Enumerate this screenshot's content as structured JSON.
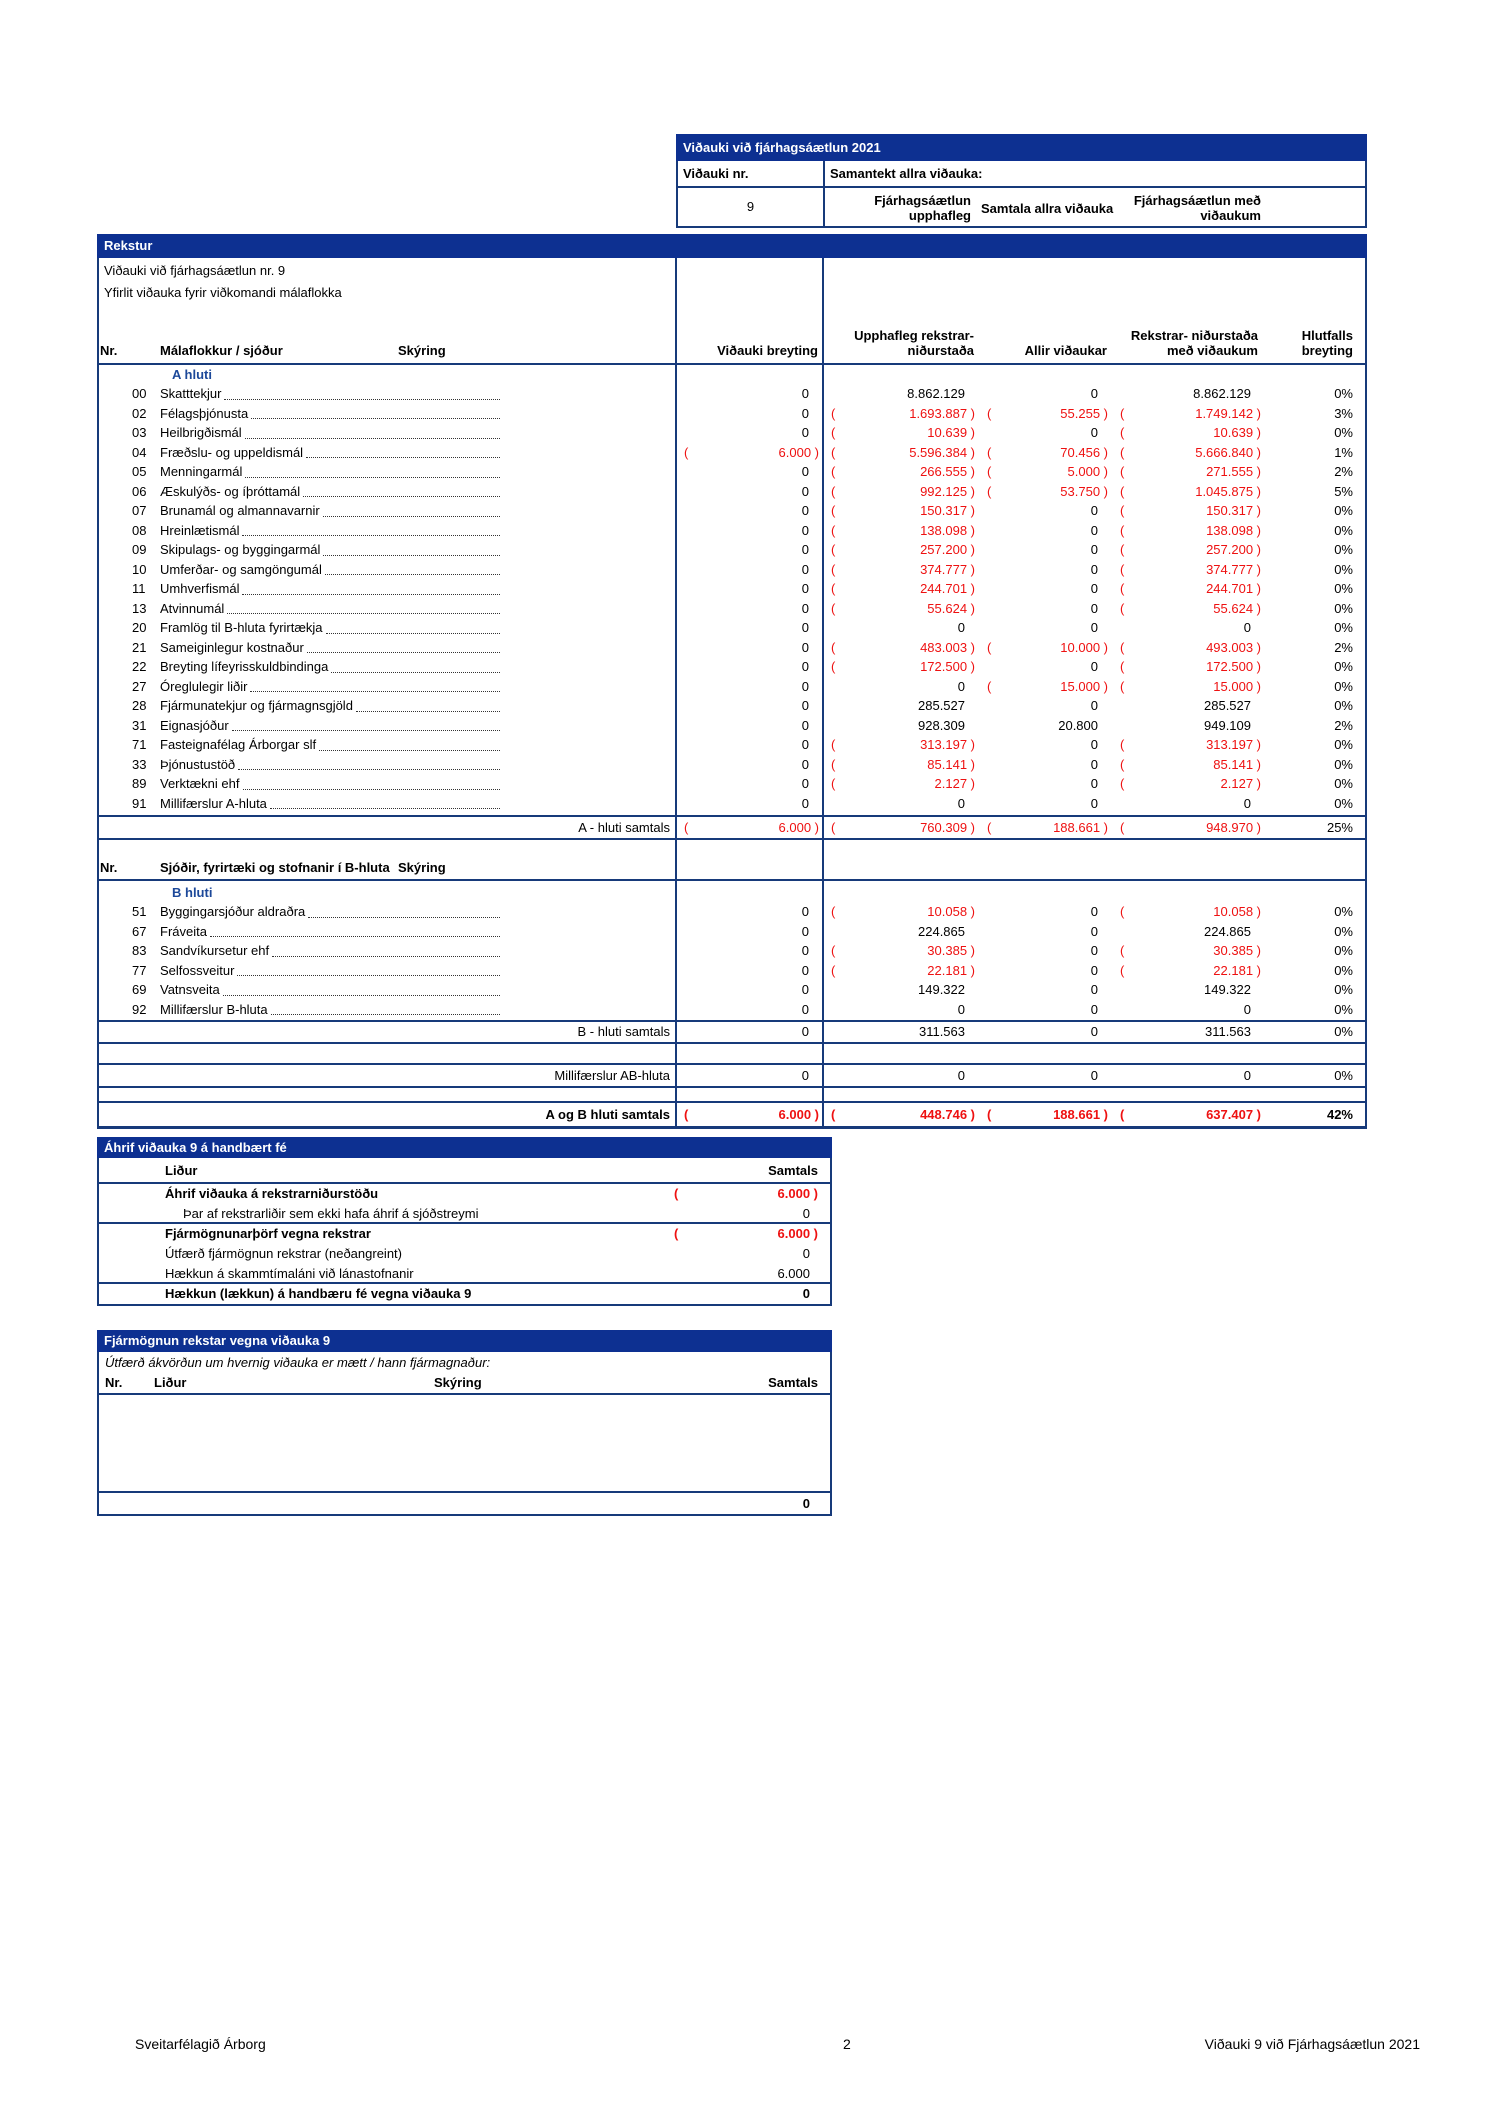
{
  "colors": {
    "navy_bar": "#0d3091",
    "table_border": "#173a7a",
    "negative_red": "#ee1111",
    "section_label_blue": "#1c4899"
  },
  "header_box": {
    "title": "Viðauki við fjárhagsáætlun 2021",
    "vidauki_nr_label": "Viðauki nr.",
    "vidauki_nr_value": "9",
    "samantekt_label": "Samantekt allra viðauka:",
    "col_upphafleg": "Fjárhagsáætlun upphafleg",
    "col_samtala": "Samtala allra viðauka",
    "col_med": "Fjárhagsáætlun með viðaukum"
  },
  "main_table": {
    "bar": "Rekstur",
    "info_line1": "Viðauki við fjárhagsáætlun nr. 9",
    "info_line2": "Yfirlit viðauka fyrir viðkomandi málaflokka",
    "col_headers": {
      "nr": "Nr.",
      "flokkur": "Málaflokkur / sjóður",
      "skyring": "Skýring",
      "vidauki_breyting": "Viðauki breyting",
      "upphafleg": "Upphafleg rekstrar- niðurstaða",
      "allir": "Allir viðaukar",
      "med_vidaukum": "Rekstrar- niðurstaða með viðaukum",
      "hlutfalls": "Hlutfalls breyting"
    },
    "a_label": "A hluti",
    "a_rows": [
      {
        "nr": "00",
        "label": "Skatttekjur",
        "vb": "0",
        "upph": "8.862.129",
        "allir": "0",
        "med": "8.862.129",
        "pct": "0%"
      },
      {
        "nr": "02",
        "label": "Félagsþjónusta",
        "vb": "0",
        "upph": "( 1.693.887 )",
        "allir": "( 55.255 )",
        "med": "( 1.749.142 )",
        "pct": "3%"
      },
      {
        "nr": "03",
        "label": "Heilbrigðismál",
        "vb": "0",
        "upph": "( 10.639 )",
        "allir": "0",
        "med": "( 10.639 )",
        "pct": "0%"
      },
      {
        "nr": "04",
        "label": "Fræðslu- og uppeldismál",
        "vb": "( 6.000 )",
        "upph": "( 5.596.384 )",
        "allir": "( 70.456 )",
        "med": "( 5.666.840 )",
        "pct": "1%"
      },
      {
        "nr": "05",
        "label": "Menningarmál",
        "vb": "0",
        "upph": "( 266.555 )",
        "allir": "( 5.000 )",
        "med": "( 271.555 )",
        "pct": "2%"
      },
      {
        "nr": "06",
        "label": "Æskulýðs- og íþróttamál",
        "vb": "0",
        "upph": "( 992.125 )",
        "allir": "( 53.750 )",
        "med": "( 1.045.875 )",
        "pct": "5%"
      },
      {
        "nr": "07",
        "label": "Brunamál og almannavarnir",
        "vb": "0",
        "upph": "( 150.317 )",
        "allir": "0",
        "med": "( 150.317 )",
        "pct": "0%"
      },
      {
        "nr": "08",
        "label": "Hreinlætismál",
        "vb": "0",
        "upph": "( 138.098 )",
        "allir": "0",
        "med": "( 138.098 )",
        "pct": "0%"
      },
      {
        "nr": "09",
        "label": "Skipulags- og byggingarmál",
        "vb": "0",
        "upph": "( 257.200 )",
        "allir": "0",
        "med": "( 257.200 )",
        "pct": "0%"
      },
      {
        "nr": "10",
        "label": "Umferðar- og samgöngumál",
        "vb": "0",
        "upph": "( 374.777 )",
        "allir": "0",
        "med": "( 374.777 )",
        "pct": "0%"
      },
      {
        "nr": "11",
        "label": "Umhverfismál",
        "vb": "0",
        "upph": "( 244.701 )",
        "allir": "0",
        "med": "( 244.701 )",
        "pct": "0%"
      },
      {
        "nr": "13",
        "label": "Atvinnumál",
        "vb": "0",
        "upph": "( 55.624 )",
        "allir": "0",
        "med": "( 55.624 )",
        "pct": "0%"
      },
      {
        "nr": "20",
        "label": "Framlög til B-hluta fyrirtækja",
        "vb": "0",
        "upph": "0",
        "allir": "0",
        "med": "0",
        "pct": "0%"
      },
      {
        "nr": "21",
        "label": "Sameiginlegur kostnaður",
        "vb": "0",
        "upph": "( 483.003 )",
        "allir": "( 10.000 )",
        "med": "( 493.003 )",
        "pct": "2%"
      },
      {
        "nr": "22",
        "label": "Breyting lífeyrisskuldbindinga",
        "vb": "0",
        "upph": "( 172.500 )",
        "allir": "0",
        "med": "( 172.500 )",
        "pct": "0%"
      },
      {
        "nr": "27",
        "label": "Óreglulegir liðir",
        "vb": "0",
        "upph": "0",
        "allir": "( 15.000 )",
        "med": "( 15.000 )",
        "pct": "0%"
      },
      {
        "nr": "28",
        "label": "Fjármunatekjur og fjármagnsgjöld",
        "vb": "0",
        "upph": "285.527",
        "allir": "0",
        "med": "285.527",
        "pct": "0%"
      },
      {
        "nr": "31",
        "label": "Eignasjóður",
        "vb": "0",
        "upph": "928.309",
        "allir": "20.800",
        "med": "949.109",
        "pct": "2%"
      },
      {
        "nr": "71",
        "label": "Fasteignafélag Árborgar slf",
        "vb": "0",
        "upph": "( 313.197 )",
        "allir": "0",
        "med": "( 313.197 )",
        "pct": "0%"
      },
      {
        "nr": "33",
        "label": "Þjónustustöð",
        "vb": "0",
        "upph": "( 85.141 )",
        "allir": "0",
        "med": "( 85.141 )",
        "pct": "0%"
      },
      {
        "nr": "89",
        "label": "Verktækni ehf",
        "vb": "0",
        "upph": "( 2.127 )",
        "allir": "0",
        "med": "( 2.127 )",
        "pct": "0%"
      },
      {
        "nr": "91",
        "label": "Millifærslur A-hluta",
        "vb": "0",
        "upph": "0",
        "allir": "0",
        "med": "0",
        "pct": "0%"
      }
    ],
    "a_total": {
      "label": "A - hluti samtals",
      "vb": "( 6.000 )",
      "upph": "( 760.309 )",
      "allir": "( 188.661 )",
      "med": "( 948.970 )",
      "pct": "25%"
    },
    "b_headers": {
      "nr": "Nr.",
      "flokkur": "Sjóðir, fyrirtæki og stofnanir í B-hluta",
      "skyring": "Skýring"
    },
    "b_label": "B hluti",
    "b_rows": [
      {
        "nr": "51",
        "label": "Byggingarsjóður aldraðra",
        "vb": "0",
        "upph": "( 10.058 )",
        "allir": "0",
        "med": "( 10.058 )",
        "pct": "0%"
      },
      {
        "nr": "67",
        "label": "Fráveita",
        "vb": "0",
        "upph": "224.865",
        "allir": "0",
        "med": "224.865",
        "pct": "0%"
      },
      {
        "nr": "83",
        "label": "Sandvíkursetur ehf",
        "vb": "0",
        "upph": "( 30.385 )",
        "allir": "0",
        "med": "( 30.385 )",
        "pct": "0%"
      },
      {
        "nr": "77",
        "label": "Selfossveitur",
        "vb": "0",
        "upph": "( 22.181 )",
        "allir": "0",
        "med": "( 22.181 )",
        "pct": "0%"
      },
      {
        "nr": "69",
        "label": "Vatnsveita",
        "vb": "0",
        "upph": "149.322",
        "allir": "0",
        "med": "149.322",
        "pct": "0%"
      },
      {
        "nr": "92",
        "label": "Millifærslur B-hluta",
        "vb": "0",
        "upph": "0",
        "allir": "0",
        "med": "0",
        "pct": "0%"
      }
    ],
    "b_total": {
      "label": "B - hluti samtals",
      "vb": "0",
      "upph": "311.563",
      "allir": "0",
      "med": "311.563",
      "pct": "0%"
    },
    "ab_transfer": {
      "label": "Millifærslur AB-hluta",
      "vb": "0",
      "upph": "0",
      "allir": "0",
      "med": "0",
      "pct": "0%"
    },
    "ab_total": {
      "label": "A og B hluti samtals",
      "vb": "( 6.000 )",
      "upph": "( 448.746 )",
      "allir": "( 188.661 )",
      "med": "( 637.407 )",
      "pct": "42%"
    }
  },
  "ahrif": {
    "bar": "Áhrif viðauka 9 á handbært fé",
    "lidur_header": "Liður",
    "samtals_header": "Samtals",
    "rows": [
      {
        "label": "Áhrif viðauka á rekstrarniðurstöðu",
        "value": "( 6.000 )"
      },
      {
        "label": "Þar af rekstrarliðir sem ekki hafa áhrif á sjóðstreymi",
        "value": "0"
      },
      {
        "label": "Fjármögnunarþörf vegna rekstrar",
        "value": "( 6.000 )"
      },
      {
        "label": "Útfærð fjármögnun rekstrar (neðangreint)",
        "value": "0"
      },
      {
        "label": "Hækkun á skammtímaláni við lánastofnanir",
        "value": "6.000"
      },
      {
        "label": "Hækkun (lækkun) á handbæru fé vegna viðauka 9",
        "value": "0"
      }
    ]
  },
  "fjarmognun": {
    "bar": "Fjármögnun rekstar vegna viðauka 9",
    "italic_note": "Útfærð ákvörðun um hvernig viðauka er mætt / hann fjármagnaður:",
    "nr_header": "Nr.",
    "lidur_header": "Liður",
    "skyring_header": "Skýring",
    "samtals_header": "Samtals",
    "total": "0"
  },
  "footer": {
    "left": "Sveitarfélagið Árborg",
    "page": "2",
    "right": "Viðauki 9 við Fjárhagsáætlun 2021"
  }
}
